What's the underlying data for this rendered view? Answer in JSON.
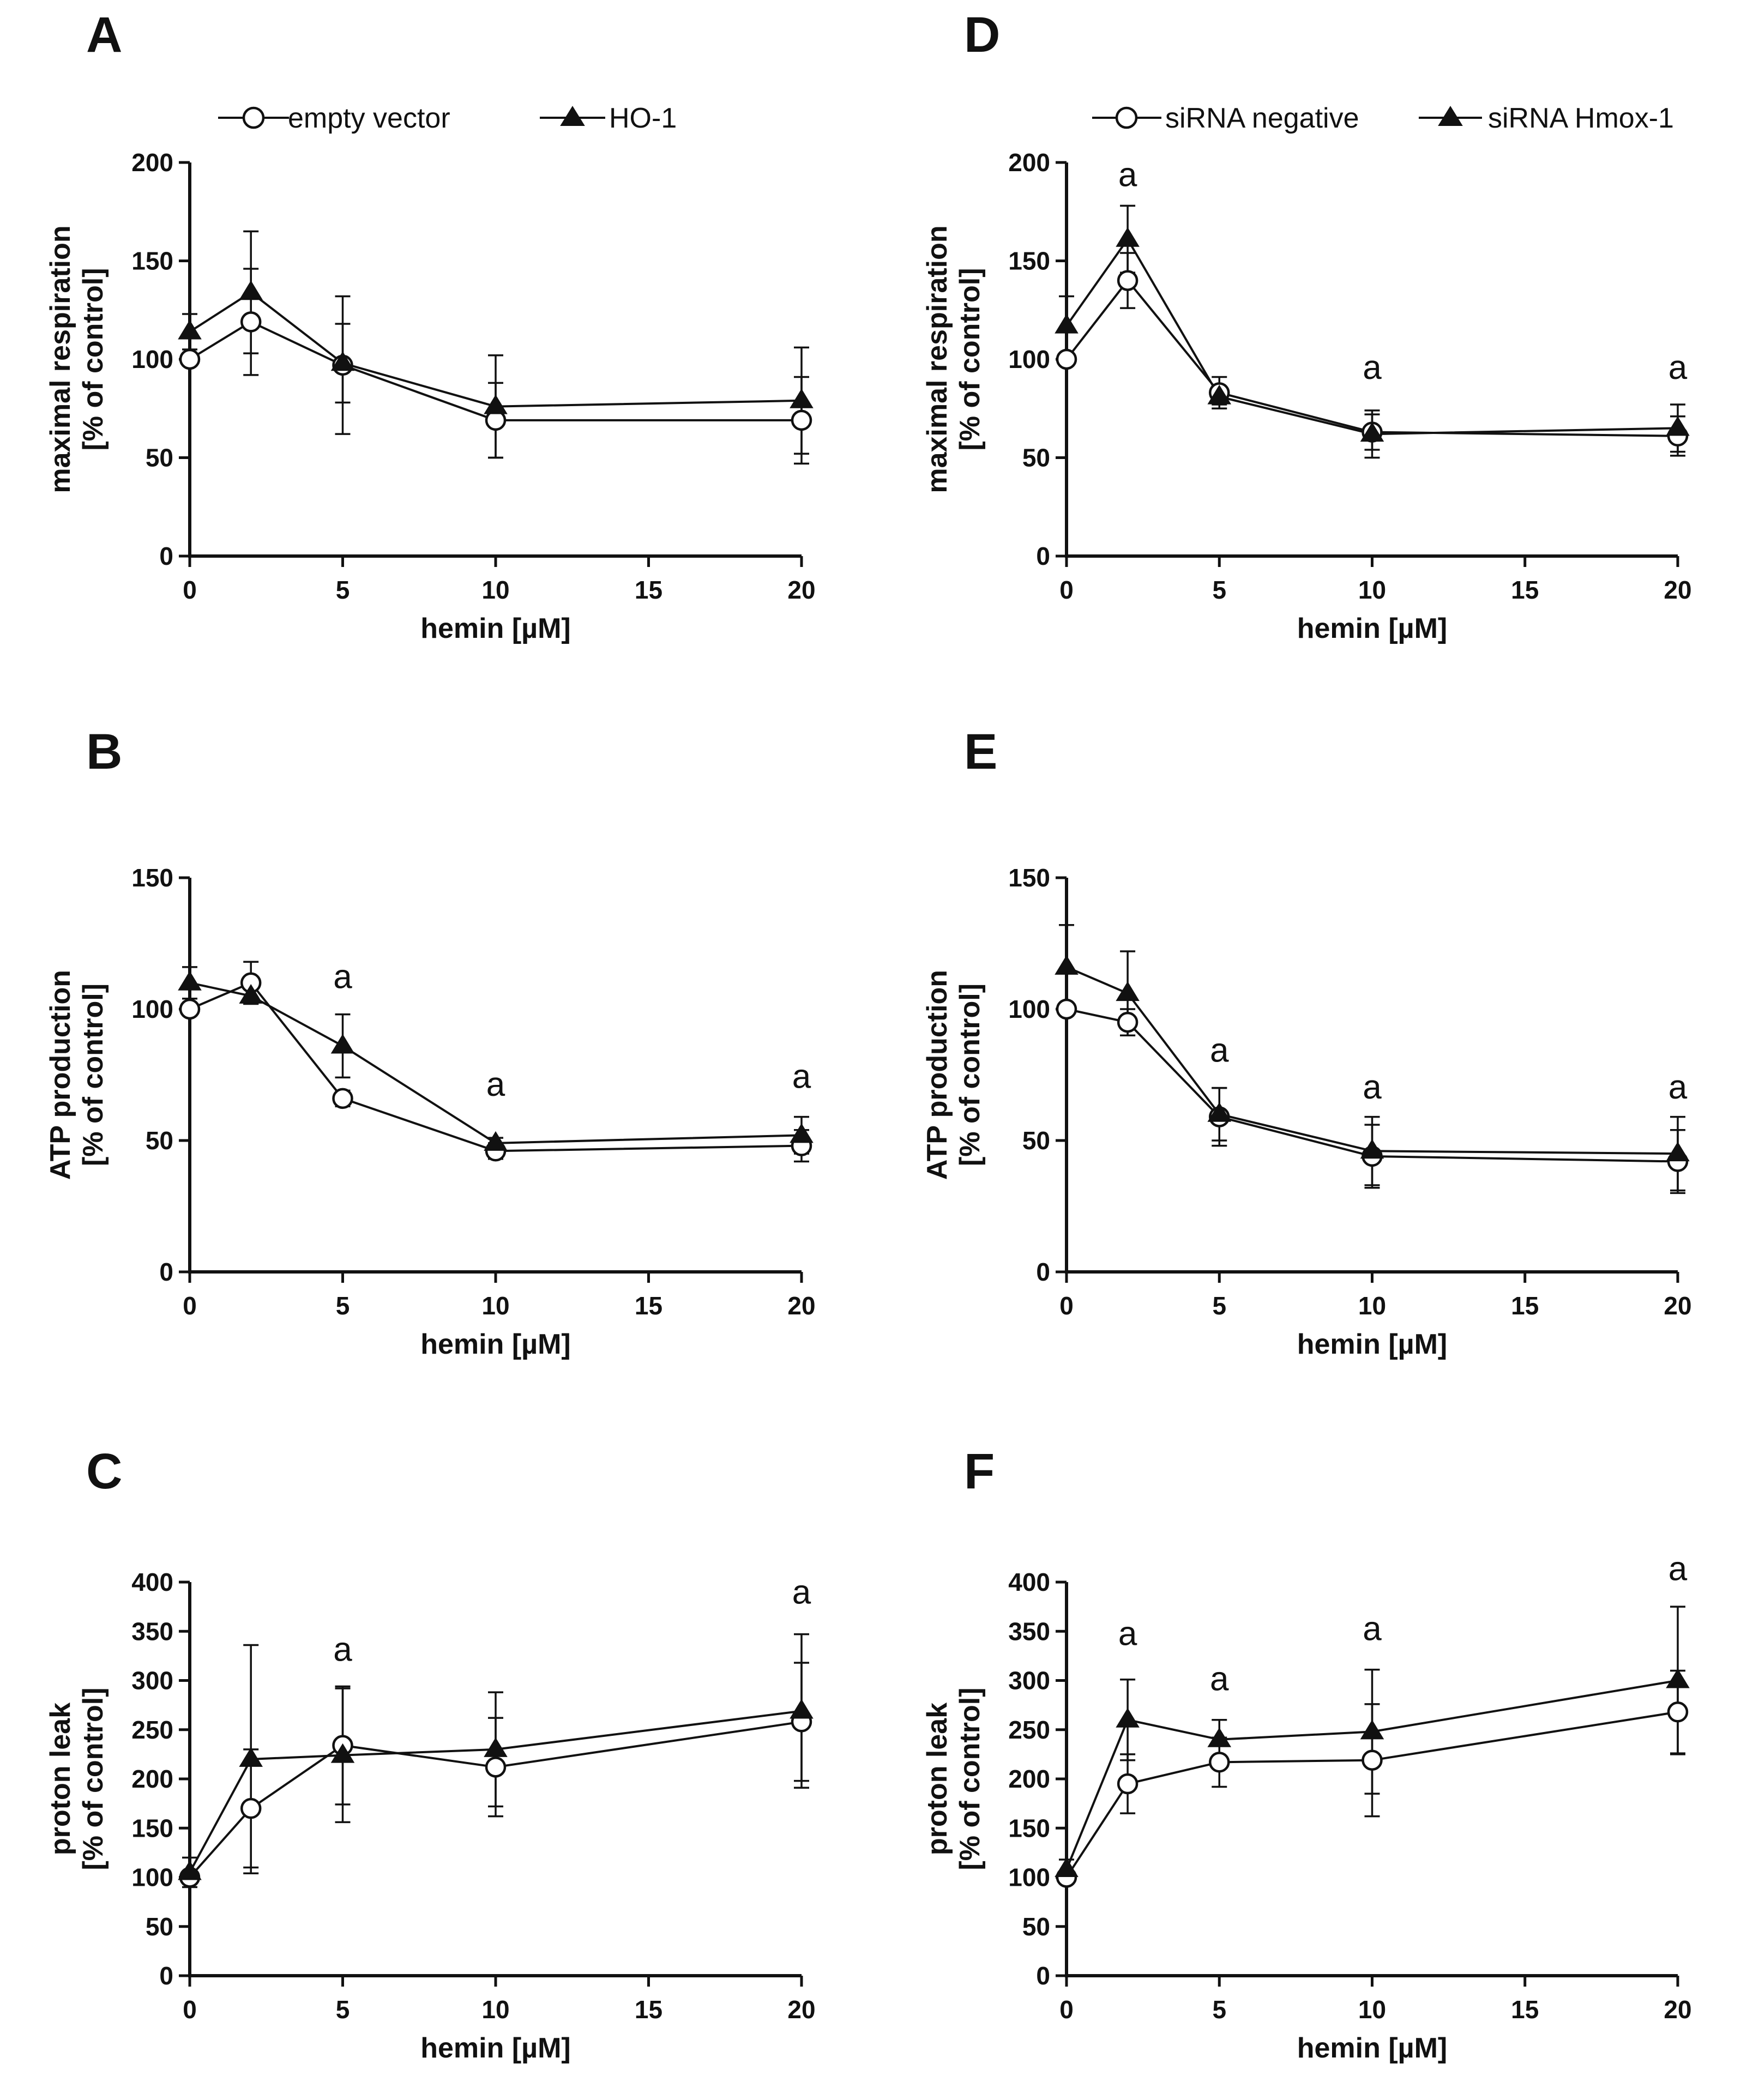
{
  "legends": {
    "left": [
      {
        "label": "empty vector",
        "marker": "open-circle"
      },
      {
        "label": "HO-1",
        "marker": "filled-triangle"
      }
    ],
    "right": [
      {
        "label": "siRNA negative",
        "marker": "open-circle"
      },
      {
        "label": "siRNA Hmox-1",
        "marker": "filled-triangle"
      }
    ]
  },
  "colors": {
    "ink": "#111111",
    "background": "#ffffff"
  },
  "chart_data": [
    {
      "panel": "A",
      "type": "line",
      "xlabel": "hemin [µM]",
      "ylabel": [
        "maximal respiration",
        "[% of control]"
      ],
      "xlim": [
        0,
        20
      ],
      "xticks": [
        0,
        5,
        10,
        15,
        20
      ],
      "ylim": [
        0,
        200
      ],
      "yticks": [
        0,
        50,
        100,
        150,
        200
      ],
      "x": [
        0,
        2,
        5,
        10,
        20
      ],
      "series": [
        {
          "name": "empty vector",
          "marker": "open-circle",
          "values": [
            100,
            119,
            97,
            69,
            69
          ],
          "err": [
            0,
            27,
            35,
            19,
            22
          ]
        },
        {
          "name": "HO-1",
          "marker": "filled-triangle",
          "values": [
            114,
            134,
            98,
            76,
            79
          ],
          "err": [
            9,
            31,
            20,
            26,
            27
          ]
        }
      ],
      "annotations": []
    },
    {
      "panel": "B",
      "type": "line",
      "xlabel": "hemin [µM]",
      "ylabel": [
        "ATP production",
        "[% of control]"
      ],
      "xlim": [
        0,
        20
      ],
      "xticks": [
        0,
        5,
        10,
        15,
        20
      ],
      "ylim": [
        0,
        150
      ],
      "yticks": [
        0,
        50,
        100,
        150
      ],
      "x": [
        0,
        2,
        5,
        10,
        20
      ],
      "series": [
        {
          "name": "empty vector",
          "marker": "open-circle",
          "values": [
            100,
            110,
            66,
            46,
            48
          ],
          "err": [
            0,
            8,
            3,
            3,
            6
          ]
        },
        {
          "name": "HO-1",
          "marker": "filled-triangle",
          "values": [
            110,
            105,
            86,
            49,
            52
          ],
          "err": [
            6,
            3,
            12,
            2,
            7
          ]
        }
      ],
      "annotations": [
        {
          "x": 5,
          "y": 108,
          "text": "a"
        },
        {
          "x": 10,
          "y": 67,
          "text": "a"
        },
        {
          "x": 20,
          "y": 70,
          "text": "a"
        }
      ]
    },
    {
      "panel": "C",
      "type": "line",
      "xlabel": "hemin [µM]",
      "ylabel": [
        "proton leak",
        "[% of control]"
      ],
      "xlim": [
        0,
        20
      ],
      "xticks": [
        0,
        5,
        10,
        15,
        20
      ],
      "ylim": [
        0,
        400
      ],
      "yticks": [
        0,
        50,
        100,
        150,
        200,
        250,
        300,
        350,
        400
      ],
      "x": [
        0,
        2,
        5,
        10,
        20
      ],
      "series": [
        {
          "name": "empty vector",
          "marker": "open-circle",
          "values": [
            100,
            170,
            234,
            212,
            258
          ],
          "err": [
            0,
            60,
            60,
            50,
            60
          ]
        },
        {
          "name": "HO-1",
          "marker": "filled-triangle",
          "values": [
            105,
            220,
            224,
            230,
            269
          ],
          "err": [
            15,
            116,
            68,
            58,
            78
          ]
        }
      ],
      "annotations": [
        {
          "x": 5,
          "y": 320,
          "text": "a"
        },
        {
          "x": 20,
          "y": 378,
          "text": "a"
        }
      ]
    },
    {
      "panel": "D",
      "type": "line",
      "xlabel": "hemin [µM]",
      "ylabel": [
        "maximal respiration",
        "[% of control]"
      ],
      "xlim": [
        0,
        20
      ],
      "xticks": [
        0,
        5,
        10,
        15,
        20
      ],
      "ylim": [
        0,
        200
      ],
      "yticks": [
        0,
        50,
        100,
        150,
        200
      ],
      "x": [
        0,
        2,
        5,
        10,
        20
      ],
      "series": [
        {
          "name": "siRNA negative",
          "marker": "open-circle",
          "values": [
            100,
            140,
            83,
            63,
            61
          ],
          "err": [
            0,
            14,
            8,
            9,
            10
          ]
        },
        {
          "name": "siRNA Hmox-1",
          "marker": "filled-triangle",
          "values": [
            117,
            161,
            81,
            62,
            65
          ],
          "err": [
            15,
            17,
            4,
            12,
            12
          ]
        }
      ],
      "annotations": [
        {
          "x": 2,
          "y": 188,
          "text": "a"
        },
        {
          "x": 10,
          "y": 90,
          "text": "a"
        },
        {
          "x": 20,
          "y": 90,
          "text": "a"
        }
      ]
    },
    {
      "panel": "E",
      "type": "line",
      "xlabel": "hemin [µM]",
      "ylabel": [
        "ATP production",
        "[% of control]"
      ],
      "xlim": [
        0,
        20
      ],
      "xticks": [
        0,
        5,
        10,
        15,
        20
      ],
      "ylim": [
        0,
        150
      ],
      "yticks": [
        0,
        50,
        100,
        150
      ],
      "x": [
        0,
        2,
        5,
        10,
        20
      ],
      "series": [
        {
          "name": "siRNA negative",
          "marker": "open-circle",
          "values": [
            100,
            95,
            59,
            44,
            42
          ],
          "err": [
            0,
            5,
            11,
            12,
            12
          ]
        },
        {
          "name": "siRNA Hmox-1",
          "marker": "filled-triangle",
          "values": [
            116,
            106,
            60,
            46,
            45
          ],
          "err": [
            16,
            16,
            10,
            13,
            14
          ]
        }
      ],
      "annotations": [
        {
          "x": 5,
          "y": 80,
          "text": "a"
        },
        {
          "x": 10,
          "y": 66,
          "text": "a"
        },
        {
          "x": 20,
          "y": 66,
          "text": "a"
        }
      ]
    },
    {
      "panel": "F",
      "type": "line",
      "xlabel": "hemin [µM]",
      "ylabel": [
        "proton leak",
        "[% of control]"
      ],
      "xlim": [
        0,
        20
      ],
      "xticks": [
        0,
        5,
        10,
        15,
        20
      ],
      "ylim": [
        0,
        400
      ],
      "yticks": [
        0,
        50,
        100,
        150,
        200,
        250,
        300,
        350,
        400
      ],
      "x": [
        0,
        2,
        5,
        10,
        20
      ],
      "series": [
        {
          "name": "siRNA negative",
          "marker": "open-circle",
          "values": [
            100,
            195,
            217,
            219,
            268
          ],
          "err": [
            0,
            30,
            25,
            57,
            42
          ]
        },
        {
          "name": "siRNA Hmox-1",
          "marker": "filled-triangle",
          "values": [
            108,
            260,
            240,
            248,
            300
          ],
          "err": [
            10,
            41,
            20,
            63,
            75
          ]
        }
      ],
      "annotations": [
        {
          "x": 2,
          "y": 336,
          "text": "a"
        },
        {
          "x": 5,
          "y": 290,
          "text": "a"
        },
        {
          "x": 10,
          "y": 341,
          "text": "a"
        },
        {
          "x": 20,
          "y": 402,
          "text": "a"
        }
      ]
    }
  ]
}
